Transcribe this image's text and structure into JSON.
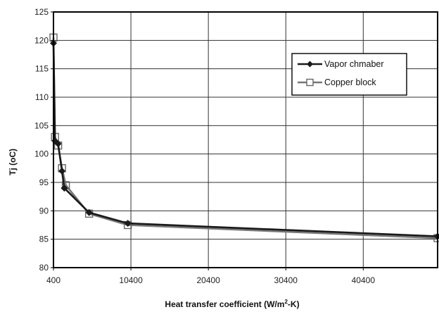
{
  "chart_data": {
    "type": "line",
    "title": "",
    "xlabel": "Heat transfer coefficient (W/m",
    "xlabel_sup": "2",
    "xlabel_tail": "-K)",
    "ylabel": "Tj (oC)",
    "xlim": [
      400,
      50000
    ],
    "ylim": [
      80,
      125
    ],
    "x_ticks": [
      400,
      10400,
      20400,
      30400,
      40400
    ],
    "x_tick_labels": [
      "400",
      "10400",
      "20400",
      "30400",
      "40400"
    ],
    "y_ticks": [
      80,
      85,
      90,
      95,
      100,
      105,
      110,
      115,
      120,
      125
    ],
    "y_tick_labels": [
      "80",
      "85",
      "90",
      "95",
      "100",
      "105",
      "110",
      "115",
      "120",
      "125"
    ],
    "grid": true,
    "legend_position": "upper-right",
    "series": [
      {
        "name": "Vapor chmaber",
        "marker": "diamond",
        "color": "#1a1a1a",
        "x": [
          400,
          600,
          1000,
          1500,
          1800,
          5000,
          10000,
          50000
        ],
        "y": [
          119.5,
          102.3,
          101.8,
          97.0,
          94.0,
          89.7,
          87.8,
          85.5
        ]
      },
      {
        "name": "Copper block",
        "marker": "square",
        "color": "#777777",
        "x": [
          400,
          600,
          1000,
          1500,
          2000,
          5000,
          10000,
          50000
        ],
        "y": [
          120.5,
          103.0,
          101.5,
          97.5,
          94.5,
          89.5,
          87.5,
          85.2
        ]
      }
    ]
  }
}
